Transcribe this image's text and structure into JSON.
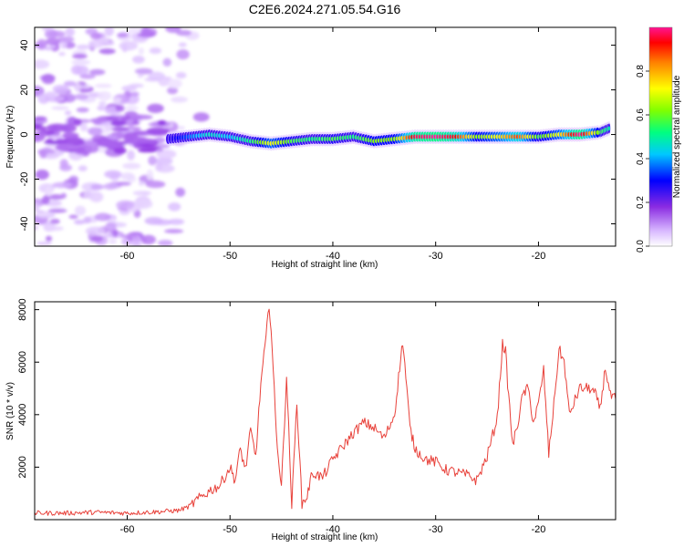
{
  "title": "C2E6.2024.271.05.54.G16",
  "chart_data": [
    {
      "type": "heatmap",
      "xlabel": "Height of straight line (km)",
      "ylabel": "Frequency (Hz)",
      "xlim": [
        -69,
        -12.5
      ],
      "ylim": [
        -50,
        48
      ],
      "xticks": [
        -60,
        -50,
        -40,
        -30,
        -20
      ],
      "yticks": [
        40,
        20,
        0,
        -20,
        -40
      ],
      "colorbar": {
        "label": "Normalized spectral amplitude",
        "range": [
          0,
          1
        ],
        "ticks": [
          "0.0",
          "0.2",
          "0.4",
          "0.6",
          "0.8"
        ],
        "colors": [
          "#ffffff",
          "#d8b8ff",
          "#8a2be2",
          "#0000ff",
          "#00c8ff",
          "#00ff80",
          "#80ff00",
          "#ffff00",
          "#ff8000",
          "#ff0000",
          "#ff1493"
        ]
      },
      "ridge": {
        "x": [
          -56,
          -54,
          -52,
          -50,
          -48,
          -46,
          -44,
          -42,
          -40,
          -38,
          -36,
          -34,
          -32,
          -30,
          -28,
          -26,
          -24,
          -22,
          -20,
          -18,
          -16,
          -14,
          -13
        ],
        "frequency": [
          -2,
          -1,
          0,
          -1,
          -3,
          -4,
          -3,
          -2,
          -2,
          -1,
          -3,
          -2,
          -1,
          -1,
          -1,
          -1,
          -1,
          -1,
          -1,
          0,
          0,
          1,
          3
        ],
        "amplitude": [
          0.25,
          0.35,
          0.45,
          0.4,
          0.5,
          0.7,
          0.55,
          0.5,
          0.55,
          0.5,
          0.6,
          0.6,
          0.95,
          1.0,
          0.9,
          0.6,
          0.7,
          0.85,
          0.55,
          0.7,
          1.0,
          0.55,
          0.45
        ]
      },
      "noise_region_x": [
        -69,
        -52
      ]
    },
    {
      "type": "line",
      "xlabel": "Height of straight line (km)",
      "ylabel": "SNR (10 * v/v)",
      "xlim": [
        -69,
        -12.5
      ],
      "ylim": [
        0,
        8300
      ],
      "xticks": [
        -60,
        -50,
        -40,
        -30,
        -20
      ],
      "yticks": [
        2000,
        4000,
        6000,
        8000
      ],
      "color": "#e8413a",
      "x": [
        -69,
        -66,
        -63,
        -60,
        -57,
        -55,
        -54,
        -53,
        -52,
        -51,
        -50,
        -49.5,
        -49,
        -48.5,
        -48,
        -47.5,
        -47,
        -46.5,
        -46.2,
        -46,
        -45.5,
        -45,
        -44.5,
        -44,
        -43.5,
        -43,
        -42.5,
        -42,
        -41,
        -40,
        -39,
        -38,
        -37,
        -36,
        -35,
        -34,
        -33.5,
        -33.2,
        -33,
        -32.5,
        -32,
        -31,
        -30,
        -29,
        -28,
        -27,
        -26,
        -25,
        -24,
        -23.5,
        -23.2,
        -23,
        -22.5,
        -22,
        -21.5,
        -21,
        -20.5,
        -20,
        -19.5,
        -19,
        -18.5,
        -18,
        -17.5,
        -17,
        -16,
        -15,
        -14.5,
        -14,
        -13.5,
        -13,
        -12.5
      ],
      "y": [
        250,
        250,
        280,
        250,
        300,
        350,
        500,
        800,
        1100,
        1300,
        2000,
        1500,
        2700,
        1900,
        3400,
        2400,
        5200,
        6900,
        8200,
        7300,
        3300,
        1200,
        5500,
        500,
        4500,
        600,
        900,
        1800,
        1600,
        2300,
        2800,
        3300,
        3700,
        3500,
        3100,
        4000,
        5800,
        6800,
        5900,
        3500,
        2700,
        2300,
        2200,
        1900,
        1800,
        1700,
        1500,
        2400,
        3900,
        6700,
        6400,
        5200,
        2800,
        3700,
        4800,
        5000,
        3700,
        4400,
        5700,
        2500,
        4400,
        6500,
        6000,
        4000,
        5000,
        5000,
        4800,
        4200,
        5800,
        4700,
        4600
      ]
    }
  ]
}
